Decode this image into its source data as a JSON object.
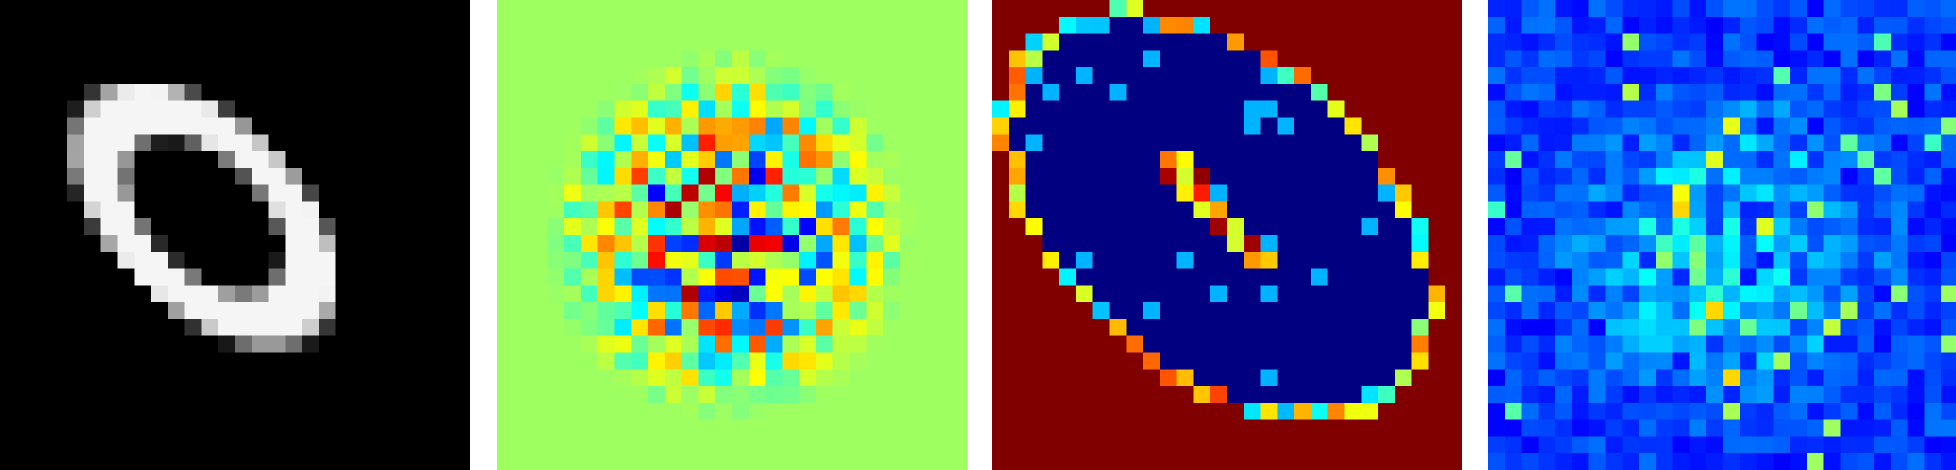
{
  "figure": {
    "panels": [
      {
        "id": "input-digit",
        "colormap": "gray",
        "background": "#000000"
      },
      {
        "id": "saliency-map",
        "colormap": "jet",
        "background": "#8cff6e"
      },
      {
        "id": "edge-response-map",
        "colormap": "jet",
        "background": "#800000"
      },
      {
        "id": "activation-map",
        "colormap": "jet",
        "background": "#0000c8"
      }
    ],
    "colors": {
      "gray_foreground": "#f5f5f5",
      "jet_dark_blue": "#00008f",
      "jet_blue": "#0000ff",
      "jet_cyan": "#00ffff",
      "jet_green": "#80ff80",
      "jet_yellow": "#ffff00",
      "jet_orange": "#ff8000",
      "jet_red": "#ff0000",
      "jet_dark_red": "#800000"
    }
  }
}
